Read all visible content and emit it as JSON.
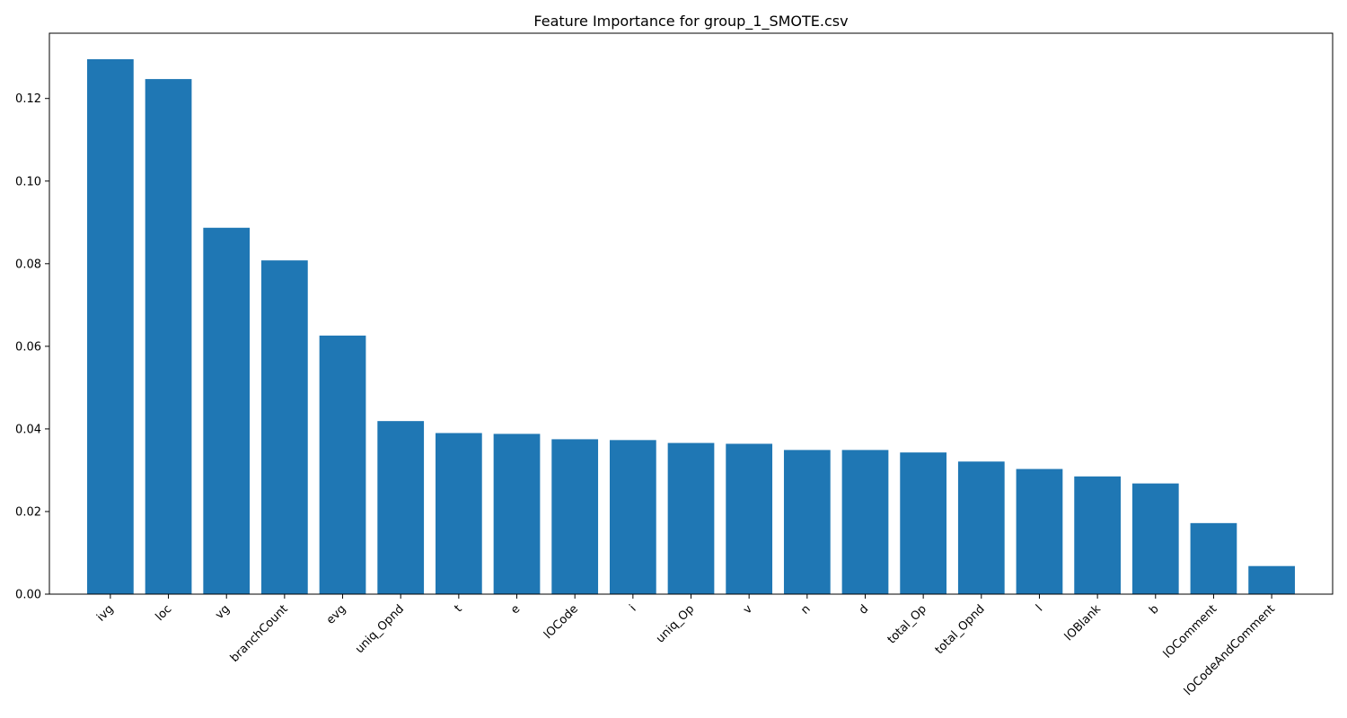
{
  "chart_data": {
    "type": "bar",
    "title": "Feature Importance for group_1_SMOTE.csv",
    "xlabel": "",
    "ylabel": "",
    "categories": [
      "ivg",
      "loc",
      "vg",
      "branchCount",
      "evg",
      "uniq_Opnd",
      "t",
      "e",
      "lOCode",
      "i",
      "uniq_Op",
      "v",
      "n",
      "d",
      "total_Op",
      "total_Opnd",
      "l",
      "lOBlank",
      "b",
      "lOComment",
      "lOCodeAndComment"
    ],
    "values": [
      0.1295,
      0.1247,
      0.0887,
      0.0808,
      0.0626,
      0.0419,
      0.039,
      0.0388,
      0.0375,
      0.0373,
      0.0366,
      0.0364,
      0.0349,
      0.0349,
      0.0343,
      0.0321,
      0.0303,
      0.0285,
      0.0268,
      0.0172,
      0.0068
    ],
    "ylim": [
      0,
      0.1358
    ],
    "yticks": [
      0.0,
      0.02,
      0.04,
      0.06,
      0.08,
      0.1,
      0.12
    ],
    "ytick_labels": [
      "0.00",
      "0.02",
      "0.04",
      "0.06",
      "0.08",
      "0.10",
      "0.12"
    ],
    "grid": false,
    "legend": "none",
    "colors": {
      "bar": "#1f77b4",
      "axis": "#000000",
      "background": "#ffffff"
    }
  }
}
